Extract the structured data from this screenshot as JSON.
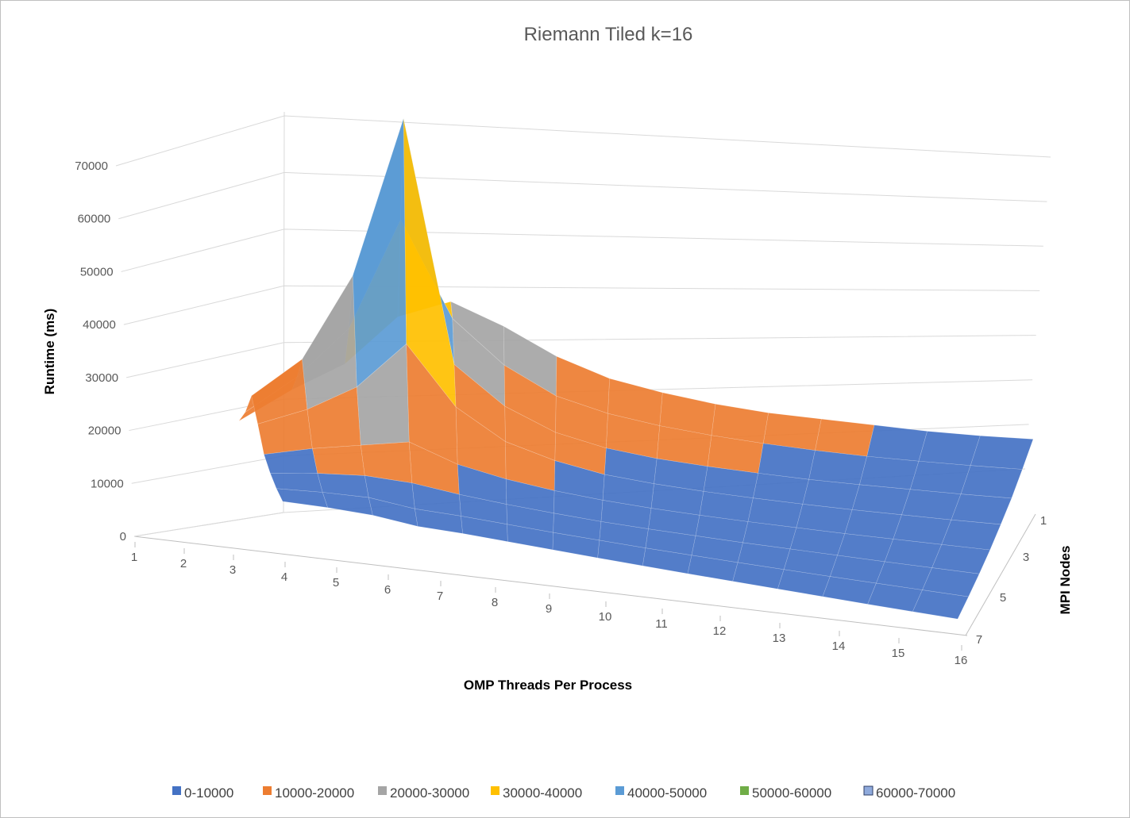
{
  "chart_data": {
    "type": "surface",
    "title": "Riemann Tiled k=16",
    "xlabel": "OMP Threads Per Process",
    "ylabel": "Runtime (ms)",
    "zlabel": "MPI Nodes",
    "x_ticks": [
      "1",
      "2",
      "3",
      "4",
      "5",
      "6",
      "7",
      "8",
      "9",
      "10",
      "11",
      "12",
      "13",
      "14",
      "15",
      "16"
    ],
    "y_ticks": [
      "0",
      "10000",
      "20000",
      "30000",
      "40000",
      "50000",
      "60000",
      "70000"
    ],
    "z_ticks": [
      "1",
      "3",
      "5",
      "7"
    ],
    "ylim": [
      0,
      70000
    ],
    "legend_position": "bottom",
    "legend": [
      {
        "label": "0-10000",
        "color": "#4472c4"
      },
      {
        "label": "10000-20000",
        "color": "#ed7d31"
      },
      {
        "label": "20000-30000",
        "color": "#a5a5a5"
      },
      {
        "label": "30000-40000",
        "color": "#ffc000"
      },
      {
        "label": "40000-50000",
        "color": "#5b9bd5"
      },
      {
        "label": "50000-60000",
        "color": "#70ad47"
      },
      {
        "label": "60000-70000",
        "color": "#8faadc"
      }
    ],
    "series_names": [
      "1",
      "2",
      "3",
      "4",
      "5",
      "6",
      "7",
      "8"
    ],
    "values": [
      [
        10500,
        16500,
        21500,
        30500,
        33500,
        29000,
        23500,
        19500,
        17000,
        15000,
        13500,
        12500,
        11500,
        10500,
        9800,
        9300
      ],
      [
        13500,
        20500,
        30000,
        51000,
        32500,
        24000,
        18500,
        15500,
        13500,
        12000,
        10800,
        9800,
        9000,
        8400,
        7900,
        7500
      ],
      [
        18000,
        25500,
        42000,
        72500,
        26000,
        18500,
        14000,
        11500,
        10000,
        9000,
        8200,
        7500,
        7000,
        6600,
        6200,
        5900
      ],
      [
        14000,
        17500,
        22500,
        31500,
        20000,
        14000,
        11000,
        9000,
        7900,
        7100,
        6500,
        6000,
        5600,
        5300,
        5000,
        4800
      ],
      [
        9500,
        11500,
        13000,
        14500,
        11000,
        9000,
        7600,
        6600,
        5900,
        5400,
        5000,
        4700,
        4400,
        4200,
        4000,
        3800
      ],
      [
        7200,
        8200,
        8800,
        8400,
        7200,
        6300,
        5600,
        5000,
        4600,
        4300,
        4000,
        3800,
        3600,
        3400,
        3250,
        3100
      ],
      [
        5500,
        6000,
        6200,
        5200,
        5000,
        4600,
        4200,
        3900,
        3600,
        3400,
        3200,
        3050,
        2900,
        2800,
        2700,
        2600
      ],
      [
        4300,
        4500,
        4400,
        3600,
        3600,
        3400,
        3200,
        3000,
        2850,
        2700,
        2600,
        2500,
        2400,
        2300,
        2250,
        2200
      ]
    ]
  }
}
